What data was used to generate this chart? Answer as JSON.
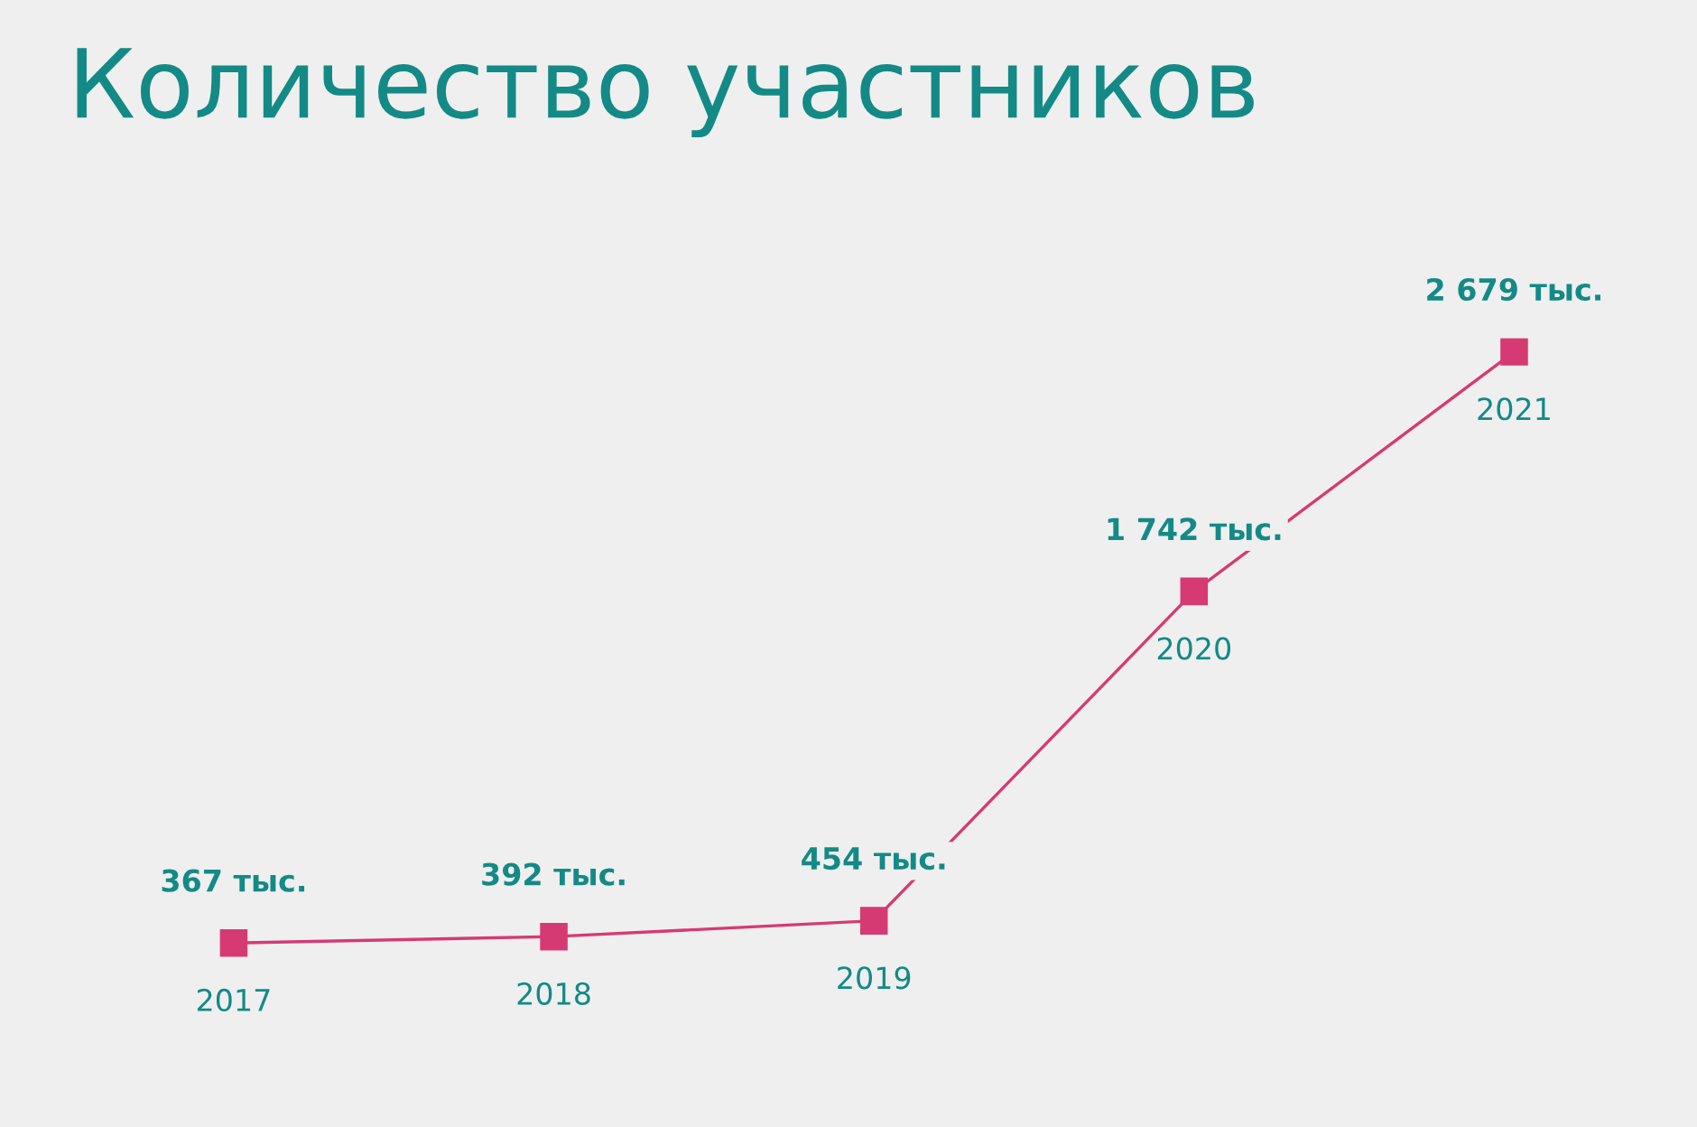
{
  "chart_data": {
    "type": "line",
    "title": "Количество участников",
    "categories": [
      "2017",
      "2018",
      "2019",
      "2020",
      "2021"
    ],
    "series": [
      {
        "color": "#d63a73",
        "values": [
          367,
          392,
          454,
          1742,
          2679
        ],
        "value_labels": [
          "367 тыс.",
          "392 тыс.",
          "454 тыс.",
          "1 742 тыс.",
          "2 679 тыс."
        ]
      }
    ],
    "marker": "square",
    "line_style": "solid",
    "legend": false,
    "tick_labels": false
  }
}
